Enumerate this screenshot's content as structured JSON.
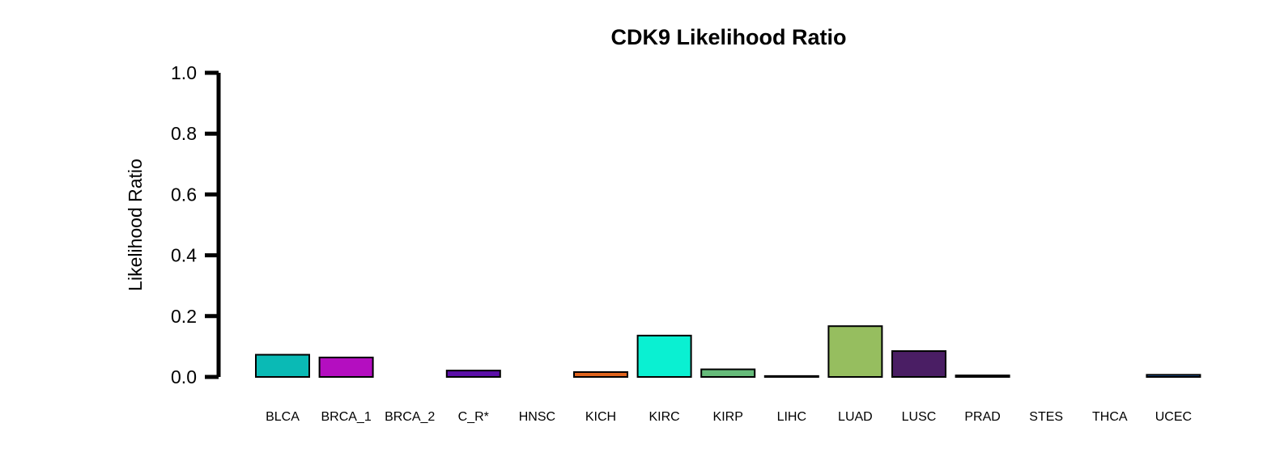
{
  "chart_data": {
    "type": "bar",
    "title": "CDK9 Likelihood Ratio",
    "xlabel": "",
    "ylabel": "Likelihood Ratio",
    "ylim": [
      0,
      1.0
    ],
    "yticks": [
      "0.0",
      "0.2",
      "0.4",
      "0.6",
      "0.8",
      "1.0"
    ],
    "grid": false,
    "legend": "none",
    "categories": [
      "BLCA",
      "BRCA_1",
      "BRCA_2",
      "C_R*",
      "HNSC",
      "KICH",
      "KIRC",
      "KIRP",
      "LIHC",
      "LUAD",
      "LUSC",
      "PRAD",
      "STES",
      "THCA",
      "UCEC"
    ],
    "values": [
      0.073,
      0.064,
      0.0,
      0.021,
      0.0,
      0.016,
      0.136,
      0.025,
      0.003,
      0.167,
      0.085,
      0.005,
      0.0,
      0.0,
      0.007
    ],
    "colors": [
      "#0ABAB5",
      "#B40EC0",
      "#8B1A1A",
      "#5B0FA8",
      "#2F4F2F",
      "#E0641E",
      "#0AF0D2",
      "#66BB7A",
      "#7A4A1A",
      "#96BE5F",
      "#4A1E64",
      "#A07828",
      "#3A3A8A",
      "#7A7A7A",
      "#1E64B4"
    ]
  }
}
